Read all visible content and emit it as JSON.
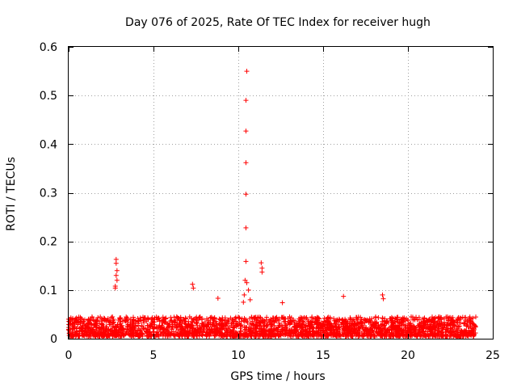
{
  "chart_data": {
    "type": "scatter",
    "title": "Day 076 of 2025, Rate Of TEC Index for receiver hugh",
    "xlabel": "GPS time / hours",
    "ylabel": "ROTI / TECUs",
    "xlim": [
      0,
      25
    ],
    "ylim": [
      0,
      0.6
    ],
    "xticks": [
      0,
      5,
      10,
      15,
      20,
      25
    ],
    "yticks": [
      0,
      0.1,
      0.2,
      0.3,
      0.4,
      0.5,
      0.6
    ],
    "grid": true,
    "marker": "+",
    "color": "#ff0000",
    "series": [
      {
        "x": [
          10.5,
          10.45,
          10.45,
          10.45,
          10.45,
          10.45,
          10.45,
          2.8,
          2.8,
          2.85,
          2.8,
          2.85,
          2.75,
          2.75,
          7.3,
          7.35,
          11.35,
          11.4,
          11.4,
          16.2,
          18.5,
          18.55,
          8.8,
          12.6,
          10.4,
          10.5,
          10.6,
          10.35,
          10.7,
          10.3
        ],
        "y": [
          0.55,
          0.49,
          0.427,
          0.362,
          0.297,
          0.228,
          0.159,
          0.163,
          0.155,
          0.14,
          0.13,
          0.12,
          0.108,
          0.104,
          0.112,
          0.104,
          0.156,
          0.145,
          0.137,
          0.087,
          0.09,
          0.082,
          0.083,
          0.074,
          0.12,
          0.115,
          0.1,
          0.09,
          0.08,
          0.075
        ]
      }
    ],
    "dense_band": {
      "x_range": [
        0,
        24
      ],
      "y_range": [
        0.005,
        0.045
      ],
      "description_hidden": true
    }
  }
}
